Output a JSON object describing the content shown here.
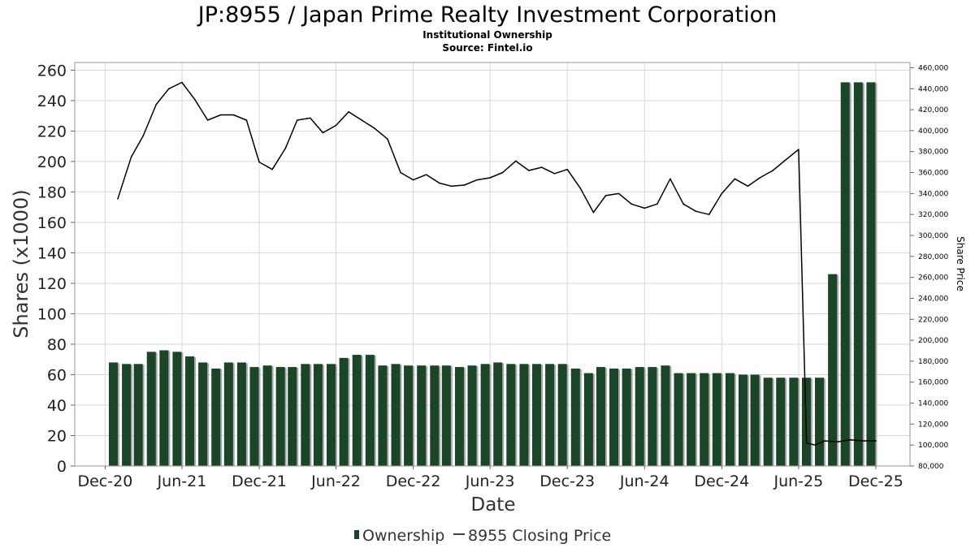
{
  "chart_data": {
    "type": "bar",
    "title": "JP:8955 / Japan Prime Realty Investment Corporation",
    "subtitle_lines": [
      "Institutional Ownership",
      "Source: Fintel.io"
    ],
    "xlabel": "Date",
    "ylabel": "Shares (x1000)",
    "y2label": "Share Price",
    "ylim": [
      0,
      265
    ],
    "y2lim": [
      80000,
      465000
    ],
    "yticks": [
      0,
      20,
      40,
      60,
      80,
      100,
      120,
      140,
      160,
      180,
      200,
      220,
      240,
      260
    ],
    "y2ticks": [
      "80,000",
      "100,000",
      "120,000",
      "140,000",
      "160,000",
      "180,000",
      "200,000",
      "220,000",
      "240,000",
      "260,000",
      "280,000",
      "300,000",
      "320,000",
      "340,000",
      "360,000",
      "380,000",
      "400,000",
      "420,000",
      "440,000",
      "460,000"
    ],
    "x_tick_labels": [
      "Dec-20",
      "Jun-21",
      "Dec-21",
      "Jun-22",
      "Dec-22",
      "Jun-23",
      "Dec-23",
      "Jun-24",
      "Dec-24",
      "Jun-25",
      "Dec-25"
    ],
    "grid": true,
    "legend_placement": "bottom-center",
    "series": [
      {
        "name": "Ownership",
        "type": "bar",
        "color": "#1a4526",
        "dates": [
          "2020-12-31",
          "2021-01-31",
          "2021-02-28",
          "2021-03-31",
          "2021-04-30",
          "2021-05-31",
          "2021-06-30",
          "2021-07-31",
          "2021-08-31",
          "2021-09-30",
          "2021-10-31",
          "2021-11-30",
          "2021-12-31",
          "2022-01-31",
          "2022-02-28",
          "2022-03-31",
          "2022-04-30",
          "2022-05-31",
          "2022-06-30",
          "2022-07-31",
          "2022-08-31",
          "2022-09-30",
          "2022-10-31",
          "2022-11-30",
          "2022-12-31",
          "2023-01-31",
          "2023-02-28",
          "2023-03-31",
          "2023-04-30",
          "2023-05-31",
          "2023-06-30",
          "2023-07-31",
          "2023-08-31",
          "2023-09-30",
          "2023-10-31",
          "2023-11-30",
          "2023-12-31",
          "2024-01-31",
          "2024-02-29",
          "2024-03-31",
          "2024-04-30",
          "2024-05-31",
          "2024-06-30",
          "2024-07-31",
          "2024-08-31",
          "2024-09-30",
          "2024-10-31",
          "2024-11-30",
          "2024-12-31",
          "2025-01-31",
          "2025-02-28",
          "2025-03-31",
          "2025-04-30",
          "2025-05-31",
          "2025-06-30",
          "2025-07-31",
          "2025-08-31",
          "2025-09-30",
          "2025-10-31",
          "2025-11-30"
        ],
        "values": [
          68,
          67,
          67,
          75,
          76,
          75,
          72,
          68,
          64,
          68,
          68,
          65,
          66,
          65,
          65,
          67,
          67,
          67,
          71,
          73,
          73,
          66,
          67,
          66,
          66,
          66,
          66,
          65,
          66,
          67,
          68,
          67,
          67,
          67,
          67,
          67,
          64,
          61,
          65,
          64,
          64,
          65,
          65,
          66,
          61,
          61,
          61,
          61,
          61,
          60,
          60,
          58,
          58,
          58,
          58,
          58,
          126,
          252,
          252,
          252
        ]
      },
      {
        "name": "8955 Closing Price",
        "type": "line",
        "color": "#000000",
        "dates": [
          "2020-12-31",
          "2021-02-01",
          "2021-03-01",
          "2021-04-01",
          "2021-05-01",
          "2021-06-01",
          "2021-07-01",
          "2021-08-01",
          "2021-09-01",
          "2021-10-01",
          "2021-11-01",
          "2021-12-01",
          "2022-01-01",
          "2022-02-01",
          "2022-03-01",
          "2022-04-01",
          "2022-05-01",
          "2022-06-01",
          "2022-07-01",
          "2022-08-01",
          "2022-09-01",
          "2022-10-01",
          "2022-11-01",
          "2022-12-01",
          "2023-01-01",
          "2023-02-01",
          "2023-03-01",
          "2023-04-01",
          "2023-05-01",
          "2023-06-01",
          "2023-07-01",
          "2023-08-01",
          "2023-09-01",
          "2023-10-01",
          "2023-11-01",
          "2023-12-01",
          "2024-01-01",
          "2024-02-01",
          "2024-03-01",
          "2024-04-01",
          "2024-05-01",
          "2024-06-01",
          "2024-07-01",
          "2024-08-01",
          "2024-09-01",
          "2024-10-01",
          "2024-11-01",
          "2024-12-01",
          "2025-01-01",
          "2025-02-01",
          "2025-03-01",
          "2025-04-01",
          "2025-05-01",
          "2025-06-01",
          "2025-06-20",
          "2025-07-10",
          "2025-08-01",
          "2025-09-01",
          "2025-10-01",
          "2025-11-01",
          "2025-12-01"
        ],
        "values": [
          335000,
          375000,
          395000,
          425000,
          440000,
          446000,
          430000,
          410000,
          415000,
          415000,
          410000,
          370000,
          363000,
          383000,
          410000,
          412000,
          398000,
          405000,
          418000,
          410000,
          402000,
          392000,
          360000,
          353000,
          358000,
          350000,
          347000,
          348000,
          353000,
          355000,
          360000,
          371000,
          362000,
          365000,
          359000,
          363000,
          345000,
          322000,
          338000,
          340000,
          330000,
          326000,
          330000,
          354000,
          330000,
          323000,
          320000,
          340000,
          354000,
          347000,
          355000,
          362000,
          372000,
          382000,
          102000,
          100000,
          104000,
          103000,
          105000,
          104000,
          104000
        ]
      }
    ]
  },
  "legend": {
    "ownership_label": "Ownership",
    "price_label": "8955 Closing Price"
  }
}
